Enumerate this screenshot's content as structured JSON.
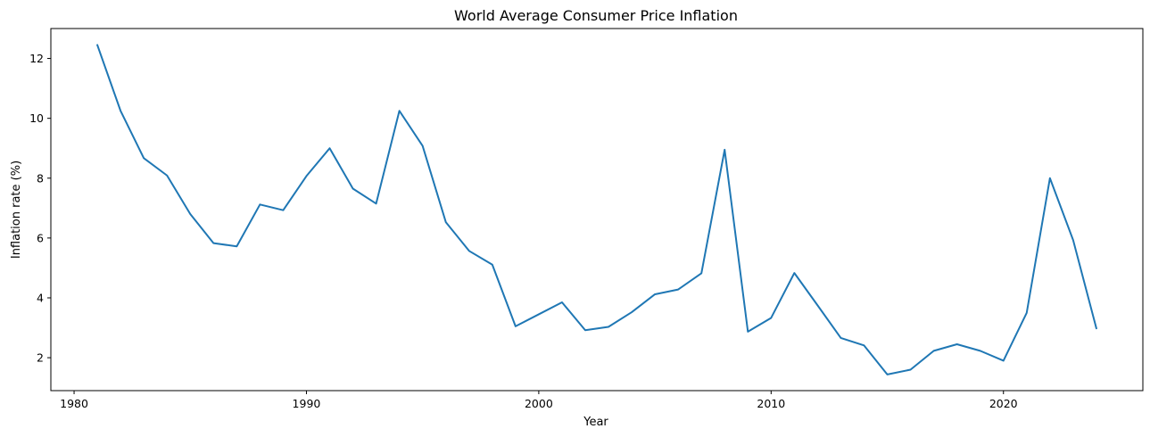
{
  "chart_data": {
    "type": "line",
    "title": "World Average Consumer Price Inflation",
    "xlabel": "Year",
    "ylabel": "Inflation rate (%)",
    "xlim": [
      1979,
      2026
    ],
    "ylim": [
      0.9,
      13.0
    ],
    "xticks": [
      1980,
      1990,
      2000,
      2010,
      2020
    ],
    "yticks": [
      2,
      4,
      6,
      8,
      10,
      12
    ],
    "grid": false,
    "series": [
      {
        "name": "Inflation rate",
        "color": "#1f77b4",
        "x": [
          1981,
          1982,
          1983,
          1984,
          1985,
          1986,
          1987,
          1988,
          1989,
          1990,
          1991,
          1992,
          1993,
          1994,
          1995,
          1996,
          1997,
          1998,
          1999,
          2000,
          2001,
          2002,
          2003,
          2004,
          2005,
          2006,
          2007,
          2008,
          2009,
          2010,
          2011,
          2012,
          2013,
          2014,
          2015,
          2016,
          2017,
          2018,
          2019,
          2020,
          2021,
          2022,
          2023,
          2024
        ],
        "values": [
          12.45,
          10.25,
          8.67,
          8.09,
          6.8,
          5.83,
          5.72,
          7.12,
          6.93,
          8.07,
          9.0,
          7.65,
          7.15,
          10.25,
          9.08,
          6.53,
          5.57,
          5.11,
          3.05,
          3.45,
          3.85,
          2.92,
          3.03,
          3.52,
          4.12,
          4.28,
          4.82,
          8.95,
          2.87,
          3.33,
          4.83,
          3.75,
          2.66,
          2.41,
          1.44,
          1.6,
          2.23,
          2.45,
          2.23,
          1.9,
          3.5,
          8.0,
          5.93,
          2.98
        ]
      }
    ]
  }
}
